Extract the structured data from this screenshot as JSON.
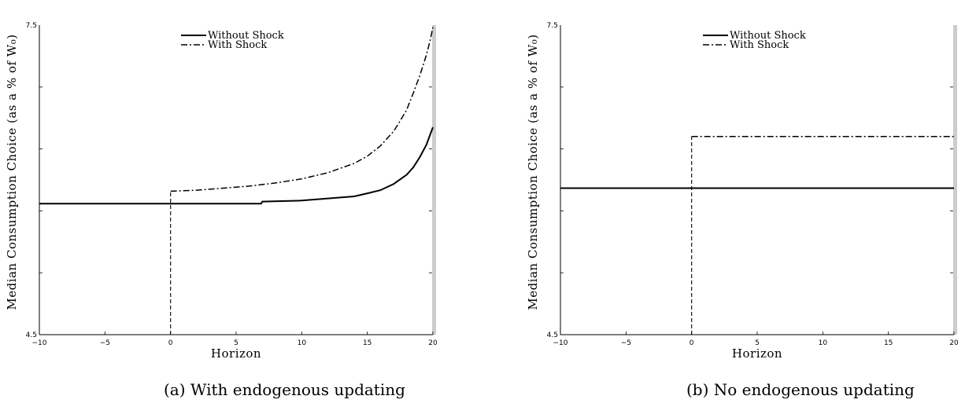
{
  "chart_data": [
    {
      "type": "line",
      "caption": "(a) With endogenous updating",
      "xlabel": "Horizon",
      "ylabel": "Median Consumption Choice (as a % of W₀)",
      "xlim": [
        -10,
        20
      ],
      "ylim": [
        4.5,
        7.5
      ],
      "xticks": [
        -10,
        -5,
        0,
        5,
        10,
        15,
        20
      ],
      "yticks": [
        4.5,
        7.5
      ],
      "legend": "top-center",
      "series": [
        {
          "name": "Without Shock",
          "style": "solid",
          "x": [
            -10,
            0,
            6.9,
            7,
            10,
            12,
            14,
            15,
            16,
            17,
            18,
            18.5,
            19,
            19.5,
            20
          ],
          "values": [
            5.77,
            5.77,
            5.77,
            5.79,
            5.8,
            5.82,
            5.84,
            5.87,
            5.9,
            5.96,
            6.05,
            6.12,
            6.22,
            6.34,
            6.51
          ]
        },
        {
          "name": "With Shock",
          "style": "dashdot",
          "x": [
            0,
            2,
            4,
            6,
            8,
            10,
            12,
            14,
            15,
            16,
            17,
            17.5,
            18,
            18.5,
            19,
            19.5,
            19.8,
            20
          ],
          "values": [
            5.89,
            5.9,
            5.92,
            5.94,
            5.97,
            6.01,
            6.07,
            6.16,
            6.23,
            6.33,
            6.47,
            6.57,
            6.68,
            6.84,
            7.01,
            7.21,
            7.36,
            7.48
          ]
        },
        {
          "name": "",
          "style": "dashed",
          "x": [
            0,
            0
          ],
          "values": [
            4.5,
            5.89
          ]
        }
      ]
    },
    {
      "type": "line",
      "caption": "(b) No endogenous updating",
      "xlabel": "Horizon",
      "ylabel": "Median Consumption Choice (as a % of W₀)",
      "xlim": [
        -10,
        20
      ],
      "ylim": [
        4.5,
        7.5
      ],
      "xticks": [
        -10,
        -5,
        0,
        5,
        10,
        15,
        20
      ],
      "yticks": [
        4.5,
        7.5
      ],
      "legend": "top-center",
      "series": [
        {
          "name": "Without Shock",
          "style": "solid",
          "x": [
            -10,
            20
          ],
          "values": [
            5.92,
            5.92
          ]
        },
        {
          "name": "With Shock",
          "style": "dashdot",
          "x": [
            0,
            20
          ],
          "values": [
            6.42,
            6.42
          ]
        },
        {
          "name": "",
          "style": "dashed",
          "x": [
            0,
            0
          ],
          "values": [
            4.5,
            6.42
          ]
        }
      ]
    }
  ]
}
